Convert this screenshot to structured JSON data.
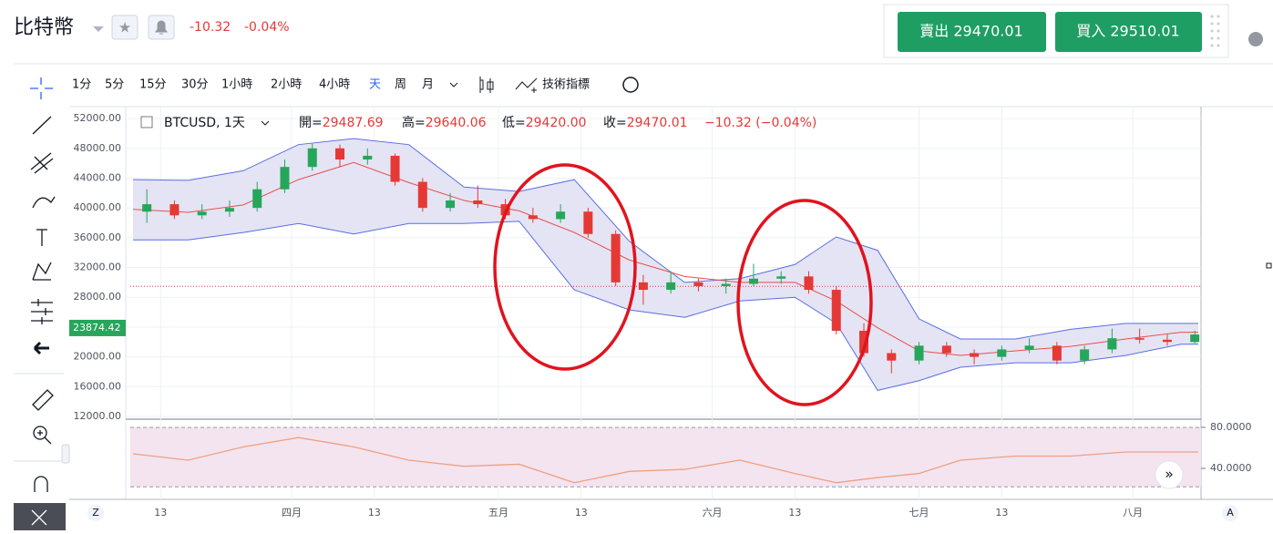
{
  "header": {
    "title": "比特幣",
    "change": "-10.32",
    "change_pct": "-0.04%",
    "sell": "賣出 29470.01",
    "buy": "買入 29510.01"
  },
  "toolbar": {
    "intervals": [
      "1分",
      "5分",
      "15分",
      "30分",
      "1小時",
      "2小時",
      "4小時",
      "天",
      "周",
      "月"
    ],
    "indicators": "技術指標"
  },
  "chart_data": [
    {
      "type": "candlestick",
      "symbol": "BTCUSD, 1天",
      "legend": [
        {
          "label": "開=",
          "value": "29487.69"
        },
        {
          "label": "高=",
          "value": "29640.06"
        },
        {
          "label": "低=",
          "value": "29420.00"
        },
        {
          "label": "收=",
          "value": "29470.01"
        },
        {
          "label": "",
          "value": "−10.32 (−0.04%)"
        }
      ],
      "x": [
        10,
        14,
        18,
        22,
        26,
        30,
        34,
        38,
        42,
        46,
        50,
        54,
        58,
        62,
        66,
        70,
        74,
        78,
        82,
        86,
        90,
        94,
        98,
        102,
        106,
        110,
        114,
        118,
        122,
        126,
        130,
        134,
        138,
        142,
        146,
        150,
        154,
        158,
        162
      ],
      "open": [
        39500,
        40500,
        39000,
        39500,
        40000,
        42500,
        45500,
        48000,
        46500,
        47000,
        43500,
        40000,
        41000,
        40500,
        39000,
        38500,
        39500,
        36500,
        30000,
        29000,
        30000,
        29500,
        29800,
        30500,
        30800,
        29000,
        23500,
        20500,
        19500,
        21500,
        20500,
        20000,
        21000,
        21500,
        19500,
        21000,
        22500,
        22300,
        22000
      ],
      "high": [
        42500,
        41000,
        40500,
        41000,
        43500,
        46500,
        48600,
        48500,
        48000,
        47300,
        44000,
        42000,
        43000,
        41200,
        40000,
        40500,
        40000,
        37000,
        31000,
        31500,
        30500,
        30500,
        32500,
        31500,
        31500,
        29500,
        24500,
        21000,
        22000,
        22000,
        21000,
        21500,
        22500,
        22000,
        21500,
        23800,
        23800,
        23000,
        23500
      ],
      "low": [
        38000,
        38500,
        38500,
        38800,
        39500,
        42000,
        45000,
        45500,
        45800,
        43000,
        39500,
        39500,
        40000,
        38500,
        38000,
        38000,
        36000,
        29500,
        27000,
        28500,
        28800,
        28500,
        29500,
        29800,
        28500,
        23000,
        20000,
        17800,
        19000,
        20000,
        19000,
        19500,
        20500,
        19000,
        19000,
        20500,
        21800,
        21500,
        21800
      ],
      "close": [
        40500,
        39000,
        39500,
        40000,
        42500,
        45500,
        48000,
        46500,
        47000,
        43500,
        40000,
        41000,
        40500,
        39000,
        38500,
        39500,
        36500,
        30000,
        29000,
        30000,
        29500,
        29800,
        30500,
        30800,
        29000,
        23500,
        20500,
        19500,
        21500,
        20500,
        20000,
        21000,
        21500,
        19500,
        21000,
        22500,
        22300,
        22000,
        23000
      ],
      "up_color": "#26a65b",
      "down_color": "#e53935",
      "bollinger": {
        "x": [
          8,
          16,
          24,
          32,
          40,
          48,
          56,
          64,
          72,
          80,
          88,
          96,
          104,
          110,
          116,
          122,
          128,
          136,
          144,
          152,
          160,
          162.5
        ],
        "upper": [
          43800,
          43700,
          45000,
          48500,
          49300,
          48500,
          42800,
          42200,
          43800,
          35500,
          30000,
          30500,
          32400,
          36100,
          34300,
          25100,
          22400,
          22400,
          23700,
          24500,
          24500,
          24500
        ],
        "middle": [
          39800,
          39400,
          40400,
          43800,
          46100,
          43400,
          41000,
          39600,
          36700,
          33000,
          30800,
          30000,
          30000,
          27500,
          23900,
          20800,
          20200,
          20800,
          21400,
          22400,
          23300,
          23300
        ],
        "lower": [
          35700,
          35700,
          36700,
          37900,
          36500,
          37900,
          37900,
          38200,
          29000,
          26300,
          25300,
          27500,
          28000,
          24500,
          15500,
          16800,
          18600,
          19200,
          19200,
          20200,
          21700,
          21700
        ],
        "color": "#5b6ee1",
        "fill": "#e4e4f4",
        "middle_color": "#e8504a"
      },
      "price_line": 29470.01,
      "last_price": 23874.42,
      "xlim": [
        7.6,
        162.9
      ],
      "xticks": [
        {
          "value": 12,
          "label": "13"
        },
        {
          "value": 31,
          "label": "四月"
        },
        {
          "value": 43,
          "label": "13"
        },
        {
          "value": 61,
          "label": "五月"
        },
        {
          "value": 73,
          "label": "13"
        },
        {
          "value": 92,
          "label": "六月"
        },
        {
          "value": 104,
          "label": "13"
        },
        {
          "value": 122,
          "label": "七月"
        },
        {
          "value": 134,
          "label": "13"
        },
        {
          "value": 153,
          "label": "八月"
        }
      ],
      "ylim": [
        11630,
        53600
      ],
      "yticks": [
        {
          "value": 12000,
          "label": "12000.00"
        },
        {
          "value": 16000,
          "label": "16000.00"
        },
        {
          "value": 20000,
          "label": "20000.00"
        },
        {
          "value": 24000,
          "label": "24000.00"
        },
        {
          "value": 28000,
          "label": "28000.00"
        },
        {
          "value": 32000,
          "label": "32000.00"
        },
        {
          "value": 36000,
          "label": "36000.00"
        },
        {
          "value": 40000,
          "label": "40000.00"
        },
        {
          "value": 44000,
          "label": "44000.00"
        },
        {
          "value": 48000,
          "label": "48000.00"
        },
        {
          "value": 52000,
          "label": "52000.00"
        }
      ],
      "grid": true
    },
    {
      "type": "line",
      "x": [
        8,
        16,
        24,
        32,
        40,
        48,
        56,
        64,
        72,
        80,
        88,
        96,
        104,
        110,
        116,
        122,
        128,
        136,
        144,
        152,
        160,
        162.5
      ],
      "values": [
        54.2,
        48,
        61,
        70,
        61,
        48,
        42,
        44,
        26,
        37,
        39,
        48,
        35,
        26,
        31,
        35,
        48,
        52,
        52,
        56,
        56,
        56
      ],
      "color": "#f0a080",
      "band": [
        22,
        80
      ],
      "band_color": "#f3e4f0",
      "ylim": [
        12.4,
        86.2
      ],
      "yticks": [
        {
          "value": 80,
          "label": "80.0000"
        },
        {
          "value": 40,
          "label": "40.0000"
        }
      ]
    }
  ]
}
